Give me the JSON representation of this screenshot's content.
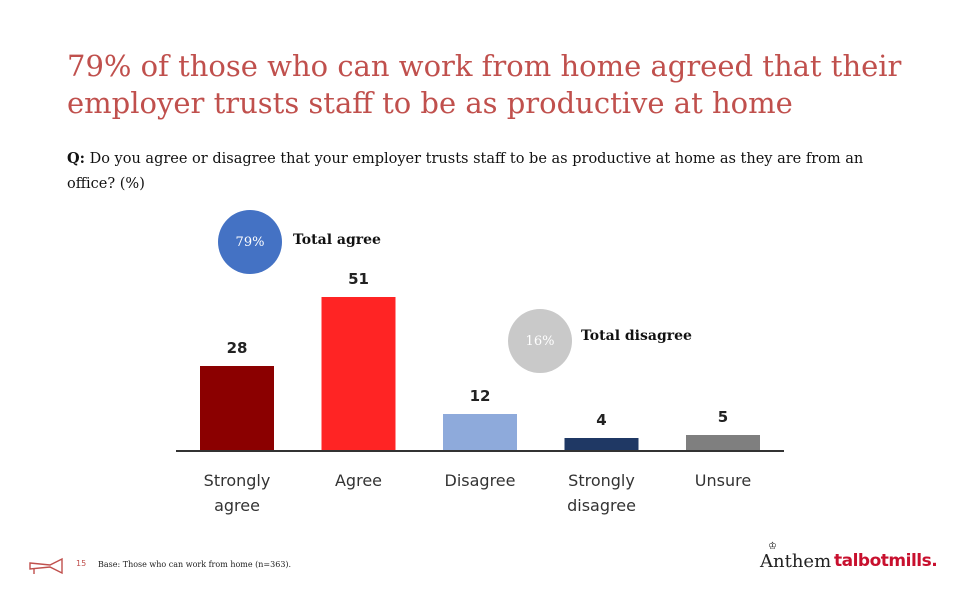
{
  "title": {
    "line1": "79% of those who can work from home agreed that their",
    "line2": "employer trusts staff to be as productive at home"
  },
  "question": {
    "prefix": "Q:",
    "text": "Do you agree or disagree that your employer trusts staff to be as productive at home as they are from an office? (%)"
  },
  "summary": {
    "agree_pct": "79%",
    "agree_label": "Total agree",
    "agree_color": "#4472c4",
    "disagree_pct": "16%",
    "disagree_label": "Total disagree",
    "disagree_color": "#c9c9c9"
  },
  "chart_data": {
    "type": "bar",
    "categories": [
      [
        "Strongly",
        "agree"
      ],
      [
        "Agree"
      ],
      [
        "Disagree"
      ],
      [
        "Strongly",
        "disagree"
      ],
      [
        "Unsure"
      ]
    ],
    "values": [
      28,
      51,
      12,
      4,
      5
    ],
    "colors": [
      "#8b0000",
      "#ff2424",
      "#8eaadb",
      "#1f3864",
      "#7f7f7f"
    ],
    "ylim": [
      0,
      60
    ],
    "grid": false,
    "legend": "none"
  },
  "footer": {
    "page_number": "15",
    "base": "Base: Those who can work from home (n=363).",
    "logo_anthem": "Anthem",
    "logo_talbot": "talbotmills."
  }
}
